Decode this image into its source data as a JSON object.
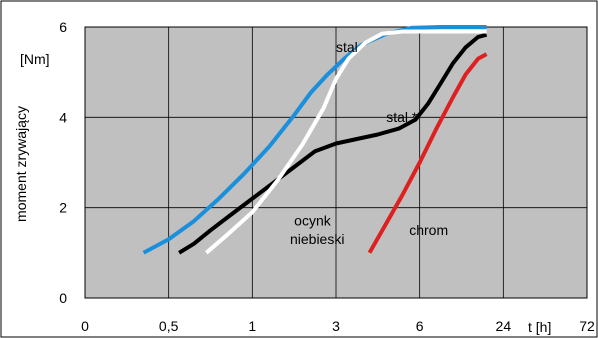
{
  "chart_data": {
    "type": "line",
    "title": "",
    "ylabel": "moment zrywający",
    "yunit": "[Nm]",
    "xlabel": "t [h]",
    "x_tick_labels": [
      "0",
      "0,5",
      "1",
      "3",
      "6",
      "24",
      "72"
    ],
    "y_tick_labels": [
      "0",
      "2",
      "4",
      "6"
    ],
    "ylim": [
      0,
      6
    ],
    "grid": true,
    "plot_background": "#c0c0c0",
    "series": [
      {
        "name": "stal",
        "color": "#1a8fdc",
        "x": [
          1.4,
          2.0,
          2.6,
          3.2,
          3.8,
          4.4,
          5.0,
          5.4,
          5.8,
          6.2,
          6.6,
          7.2,
          7.8,
          8.5,
          9.6
        ],
        "y": [
          1.0,
          1.3,
          1.7,
          2.2,
          2.75,
          3.35,
          4.05,
          4.55,
          4.95,
          5.3,
          5.6,
          5.85,
          5.98,
          6.0,
          6.0
        ]
      },
      {
        "name": "",
        "color": "#000000",
        "x": [
          2.25,
          2.6,
          3.0,
          3.5,
          4.0,
          4.5,
          5.0,
          5.5,
          6.0,
          6.5,
          7.0,
          7.5,
          7.9,
          8.2,
          8.5,
          8.8,
          9.1,
          9.4,
          9.6
        ],
        "y": [
          1.0,
          1.2,
          1.5,
          1.85,
          2.2,
          2.55,
          2.9,
          3.25,
          3.42,
          3.52,
          3.62,
          3.75,
          3.95,
          4.3,
          4.75,
          5.2,
          5.55,
          5.78,
          5.83
        ]
      },
      {
        "name": "ocynk niebieski",
        "color": "#ffffff",
        "x": [
          2.9,
          3.4,
          4.0,
          4.6,
          5.2,
          5.7,
          6.0,
          6.3,
          6.7,
          7.1,
          7.6,
          8.0,
          9.6
        ],
        "y": [
          1.0,
          1.4,
          1.9,
          2.6,
          3.4,
          4.2,
          4.85,
          5.3,
          5.65,
          5.85,
          5.9,
          5.9,
          5.9
        ]
      },
      {
        "name": "chrom",
        "color": "#dd2020",
        "x": [
          6.8,
          7.2,
          7.6,
          8.0,
          8.4,
          8.8,
          9.1,
          9.4,
          9.6
        ],
        "y": [
          1.0,
          1.65,
          2.3,
          3.0,
          3.75,
          4.45,
          4.95,
          5.3,
          5.4
        ]
      }
    ],
    "annotations": [
      {
        "text": "stal",
        "x": 6.0,
        "y": 5.45
      },
      {
        "text": "stal *",
        "x": 7.2,
        "y": 3.9
      },
      {
        "text": "ocynk",
        "x": 5.0,
        "y": 1.6
      },
      {
        "text": "niebieski",
        "x": 4.9,
        "y": 1.2
      },
      {
        "text": "chrom",
        "x": 7.75,
        "y": 1.4
      }
    ]
  }
}
